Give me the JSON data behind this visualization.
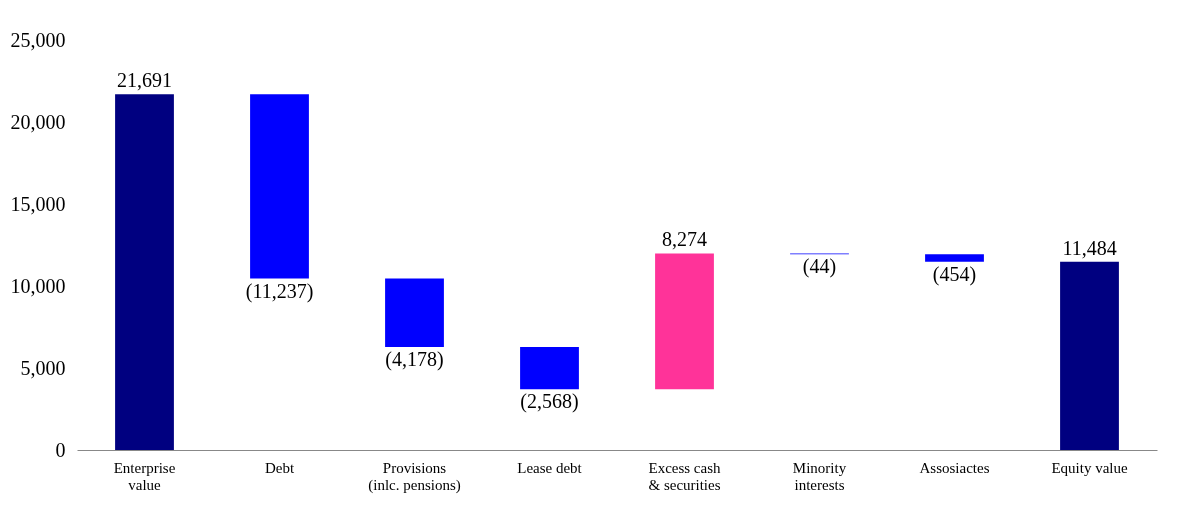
{
  "chart_data": {
    "type": "bar",
    "categories": [
      "Enterprise\nvalue",
      "Debt",
      "Provisions\n(inlc. pensions)",
      "Lease debt",
      "Excess cash\n& securities",
      "Minority\ninterests",
      "Assosiactes",
      "Equity value"
    ],
    "values": [
      21691,
      -11237,
      -4178,
      -2568,
      8274,
      -44,
      -454,
      11484
    ],
    "base": [
      0,
      21691,
      10454,
      6276,
      3708,
      11982,
      11938,
      0
    ],
    "colors": [
      "#000080",
      "#0000ff",
      "#0000ff",
      "#0000ff",
      "#ff3399",
      "#0000ff",
      "#0000ff",
      "#000080"
    ],
    "value_labels": [
      "21,691",
      "(11,237)",
      "(4,178)",
      "(2,568)",
      "8,274",
      "(44)",
      "(454)",
      "11,484"
    ],
    "ylim": [
      0,
      25000
    ],
    "yticks": [
      0,
      {
        "value": 5000,
        "label": "5,000"
      },
      {
        "value": 10000,
        "label": "10,000"
      },
      {
        "value": 15000,
        "label": "15,000"
      },
      {
        "value": 20000,
        "label": "20,000"
      },
      {
        "value": 25000,
        "label": "25,000"
      }
    ],
    "grid": false,
    "legend": false
  }
}
